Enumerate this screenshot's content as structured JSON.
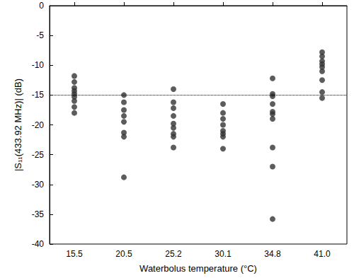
{
  "chart_data": {
    "type": "scatter",
    "x_label": "Waterbolus temperature (°C)",
    "y_label": "|S₁₁(433.92 MHz)| (dB)",
    "categories": [
      "15.5",
      "20.5",
      "25.2",
      "30.1",
      "34.8",
      "41.0"
    ],
    "series": [
      {
        "color": "#333333",
        "marker": "circle",
        "values": [
          [
            -11.8,
            -12.8,
            -13.8,
            -14.3,
            -14.8,
            -15.3,
            -16.0,
            -17.0,
            -18.0
          ],
          [
            -15.0,
            -16.2,
            -17.5,
            -18.5,
            -19.5,
            -21.3,
            -22.0,
            -28.8
          ],
          [
            -14.0,
            -16.2,
            -17.2,
            -18.5,
            -19.8,
            -20.5,
            -21.5,
            -22.0,
            -23.8
          ],
          [
            -16.5,
            -18.0,
            -19.0,
            -20.0,
            -21.0,
            -21.5,
            -22.0,
            -24.0
          ],
          [
            -12.2,
            -14.8,
            -15.2,
            -16.5,
            -17.8,
            -18.2,
            -19.0,
            -23.8,
            -27.0,
            -35.8
          ],
          [
            -7.8,
            -8.5,
            -9.3,
            -9.8,
            -10.3,
            -11.0,
            -12.5,
            -14.5,
            -15.5
          ]
        ]
      }
    ],
    "reference_line": {
      "y": -15,
      "line_style": "dotted"
    },
    "ylim": [
      -40,
      0
    ],
    "yticks": [
      -40,
      -35,
      -30,
      -25,
      -20,
      -15,
      -10,
      -5,
      0
    ],
    "grid": false
  }
}
